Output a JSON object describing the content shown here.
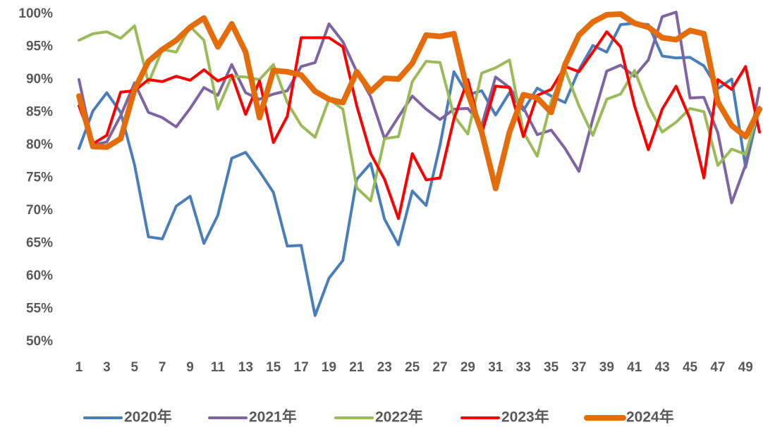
{
  "chart_data": {
    "type": "line",
    "x": [
      1,
      2,
      3,
      4,
      5,
      6,
      7,
      8,
      9,
      10,
      11,
      12,
      13,
      14,
      15,
      16,
      17,
      18,
      19,
      20,
      21,
      22,
      23,
      24,
      25,
      26,
      27,
      28,
      29,
      30,
      31,
      32,
      33,
      34,
      35,
      36,
      37,
      38,
      39,
      40,
      41,
      42,
      43,
      44,
      45,
      46,
      47,
      48,
      49,
      50
    ],
    "xlim": [
      1,
      50
    ],
    "xticks": [
      1,
      3,
      5,
      7,
      9,
      11,
      13,
      15,
      17,
      19,
      21,
      23,
      25,
      27,
      29,
      31,
      33,
      35,
      37,
      39,
      41,
      43,
      45,
      47,
      49
    ],
    "ylim": [
      50,
      100
    ],
    "yticks": [
      {
        "value": 50,
        "label": "50%"
      },
      {
        "value": 55,
        "label": "55%"
      },
      {
        "value": 60,
        "label": "60%"
      },
      {
        "value": 65,
        "label": "65%"
      },
      {
        "value": 70,
        "label": "70%"
      },
      {
        "value": 75,
        "label": "75%"
      },
      {
        "value": 80,
        "label": "80%"
      },
      {
        "value": 85,
        "label": "85%"
      },
      {
        "value": 90,
        "label": "90%"
      },
      {
        "value": 95,
        "label": "95%"
      },
      {
        "value": 100,
        "label": "100%"
      }
    ],
    "grid": false,
    "legend": "bottom",
    "series": [
      {
        "name": "2020年",
        "color": "#4a7ebb",
        "width": 4,
        "values": [
          79.5,
          85.2,
          88,
          85,
          77,
          66,
          65.7,
          70.7,
          72.2,
          65,
          69.3,
          78,
          78.9,
          76,
          72.8,
          64.6,
          64.7,
          54,
          59.7,
          62.4,
          74.8,
          77.2,
          68.7,
          64.8,
          73,
          70.8,
          80,
          91.2,
          87.7,
          88.3,
          84.6,
          88,
          85.3,
          88.7,
          87.5,
          86.5,
          91.5,
          95.2,
          94.2,
          98.4,
          98.6,
          98.4,
          93.6,
          93.3,
          93.4,
          92.1,
          88.6,
          90.1,
          76.6,
          85.8
        ]
      },
      {
        "name": "2021年",
        "color": "#8064a2",
        "width": 4,
        "values": [
          90,
          80,
          80.5,
          84.5,
          89.5,
          85,
          84.2,
          82.8,
          85.6,
          88.8,
          87.6,
          92.3,
          88,
          87,
          87.8,
          88.3,
          92,
          92.6,
          98.5,
          95.8,
          91.2,
          87.4,
          81,
          84.3,
          87.5,
          85.5,
          83.9,
          85.5,
          85.6,
          83,
          90.4,
          88.8,
          85.7,
          81.6,
          82.3,
          79.5,
          76,
          84,
          91.3,
          92.2,
          90.5,
          93,
          99.6,
          100.3,
          87.2,
          87.3,
          81.9,
          71.2,
          77,
          88.7
        ]
      },
      {
        "name": "2022年",
        "color": "#9bbb59",
        "width": 4,
        "values": [
          96,
          97,
          97.3,
          96.3,
          98.2,
          89.5,
          94.6,
          94.2,
          98.1,
          96,
          85.5,
          90.5,
          90.4,
          90,
          92.3,
          86.5,
          83,
          81.2,
          87,
          85.5,
          73.5,
          71.5,
          81,
          81.3,
          89.7,
          92.8,
          92.6,
          84.5,
          81.7,
          91,
          91.8,
          93,
          82,
          78.3,
          86.7,
          91.5,
          86,
          81.5,
          87,
          87.8,
          91.4,
          86,
          82,
          83.5,
          85.6,
          85.1,
          76.9,
          79.4,
          78.6,
          85.8
        ]
      },
      {
        "name": "2023年",
        "color": "#ff0000",
        "width": 4,
        "values": [
          86,
          80.2,
          81.5,
          88.1,
          88.3,
          90,
          89.7,
          90.5,
          89.9,
          91.5,
          89.8,
          90.7,
          84.7,
          89.8,
          80.4,
          84.4,
          96.4,
          96.4,
          96.4,
          95,
          86,
          78.7,
          74.8,
          68.8,
          78.7,
          74.7,
          75,
          84,
          90,
          81.8,
          89,
          88.8,
          81.3,
          87.6,
          88.5,
          92,
          91.2,
          94.2,
          97.3,
          95,
          86,
          79.3,
          85.5,
          89,
          84,
          75,
          90,
          88.5,
          92,
          82
        ]
      },
      {
        "name": "2024年",
        "color": "#e46c0a",
        "width": 8,
        "values": [
          87.5,
          79.8,
          79.7,
          81,
          88.5,
          92.8,
          94.6,
          96,
          98,
          99.4,
          95,
          98.5,
          94.2,
          84.2,
          91.4,
          91.2,
          90.7,
          88.2,
          87,
          86.5,
          91.2,
          88.2,
          90.2,
          90.1,
          92.5,
          96.8,
          96.6,
          97,
          88,
          82,
          73.4,
          82,
          87.7,
          87.2,
          85,
          92.3,
          96.8,
          98.8,
          99.9,
          100,
          98.6,
          98,
          96.4,
          96.1,
          97.5,
          97,
          86.6,
          83,
          81.3,
          85.5
        ]
      }
    ]
  }
}
